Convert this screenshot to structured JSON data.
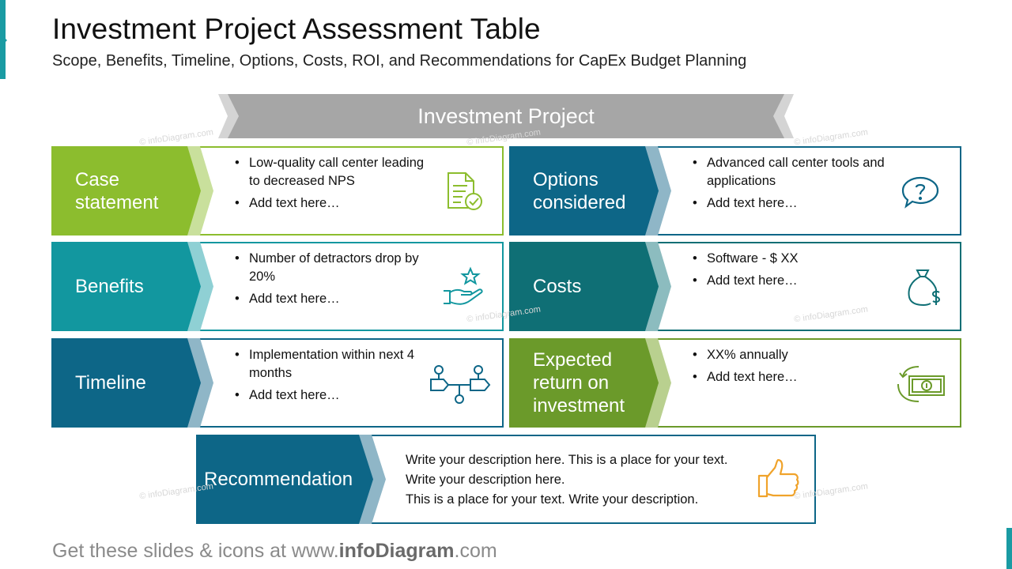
{
  "title": "Investment Project Assessment Table",
  "subtitle": "Scope, Benefits, Timeline, Options, Costs, ROI, and Recommendations for CapEx Budget Planning",
  "banner": "Investment Project",
  "colors": {
    "green": "#8cbd2e",
    "teal": "#12979f",
    "blue": "#0d6687",
    "dark_teal": "#0f6f75",
    "olive": "#6b9a2a",
    "banner_gray": "#a6a6a6",
    "icon_orange": "#f0a32b"
  },
  "cards": [
    {
      "key": "case",
      "label": "Case statement",
      "bullets": [
        "Low-quality call center leading to decreased NPS",
        "Add text here…"
      ],
      "icon": "document-check-icon",
      "color": "#8cbd2e"
    },
    {
      "key": "options",
      "label": "Options considered",
      "bullets": [
        "Advanced call center tools and applications",
        "Add text here…"
      ],
      "icon": "question-speech-bubble-icon",
      "color": "#0d6687"
    },
    {
      "key": "benefits",
      "label": "Benefits",
      "bullets": [
        "Number of detractors drop by 20%",
        "Add text here…"
      ],
      "icon": "hand-star-icon",
      "color": "#12979f"
    },
    {
      "key": "costs",
      "label": "Costs",
      "bullets": [
        "Software - $ XX",
        "Add text here…"
      ],
      "icon": "money-bag-icon",
      "color": "#0f6f75"
    },
    {
      "key": "timeline",
      "label": "Timeline",
      "bullets": [
        "Implementation within next 4 months",
        "Add text here…"
      ],
      "icon": "process-flow-icon",
      "color": "#0d6687"
    },
    {
      "key": "roi",
      "label": "Expected return on investment",
      "bullets": [
        "XX% annually",
        "Add text here…"
      ],
      "icon": "money-return-icon",
      "color": "#6b9a2a"
    }
  ],
  "recommendation": {
    "label": "Recommendation",
    "lines": [
      "Write your description here. This is a place for your text. Write your description here.",
      "This is a place for your text. Write your description."
    ],
    "icon": "thumbs-up-icon"
  },
  "watermark": "© infoDiagram.com",
  "footer": {
    "prefix": "Get these slides & icons at www.",
    "brand": "infoDiagram",
    "suffix": ".com"
  }
}
